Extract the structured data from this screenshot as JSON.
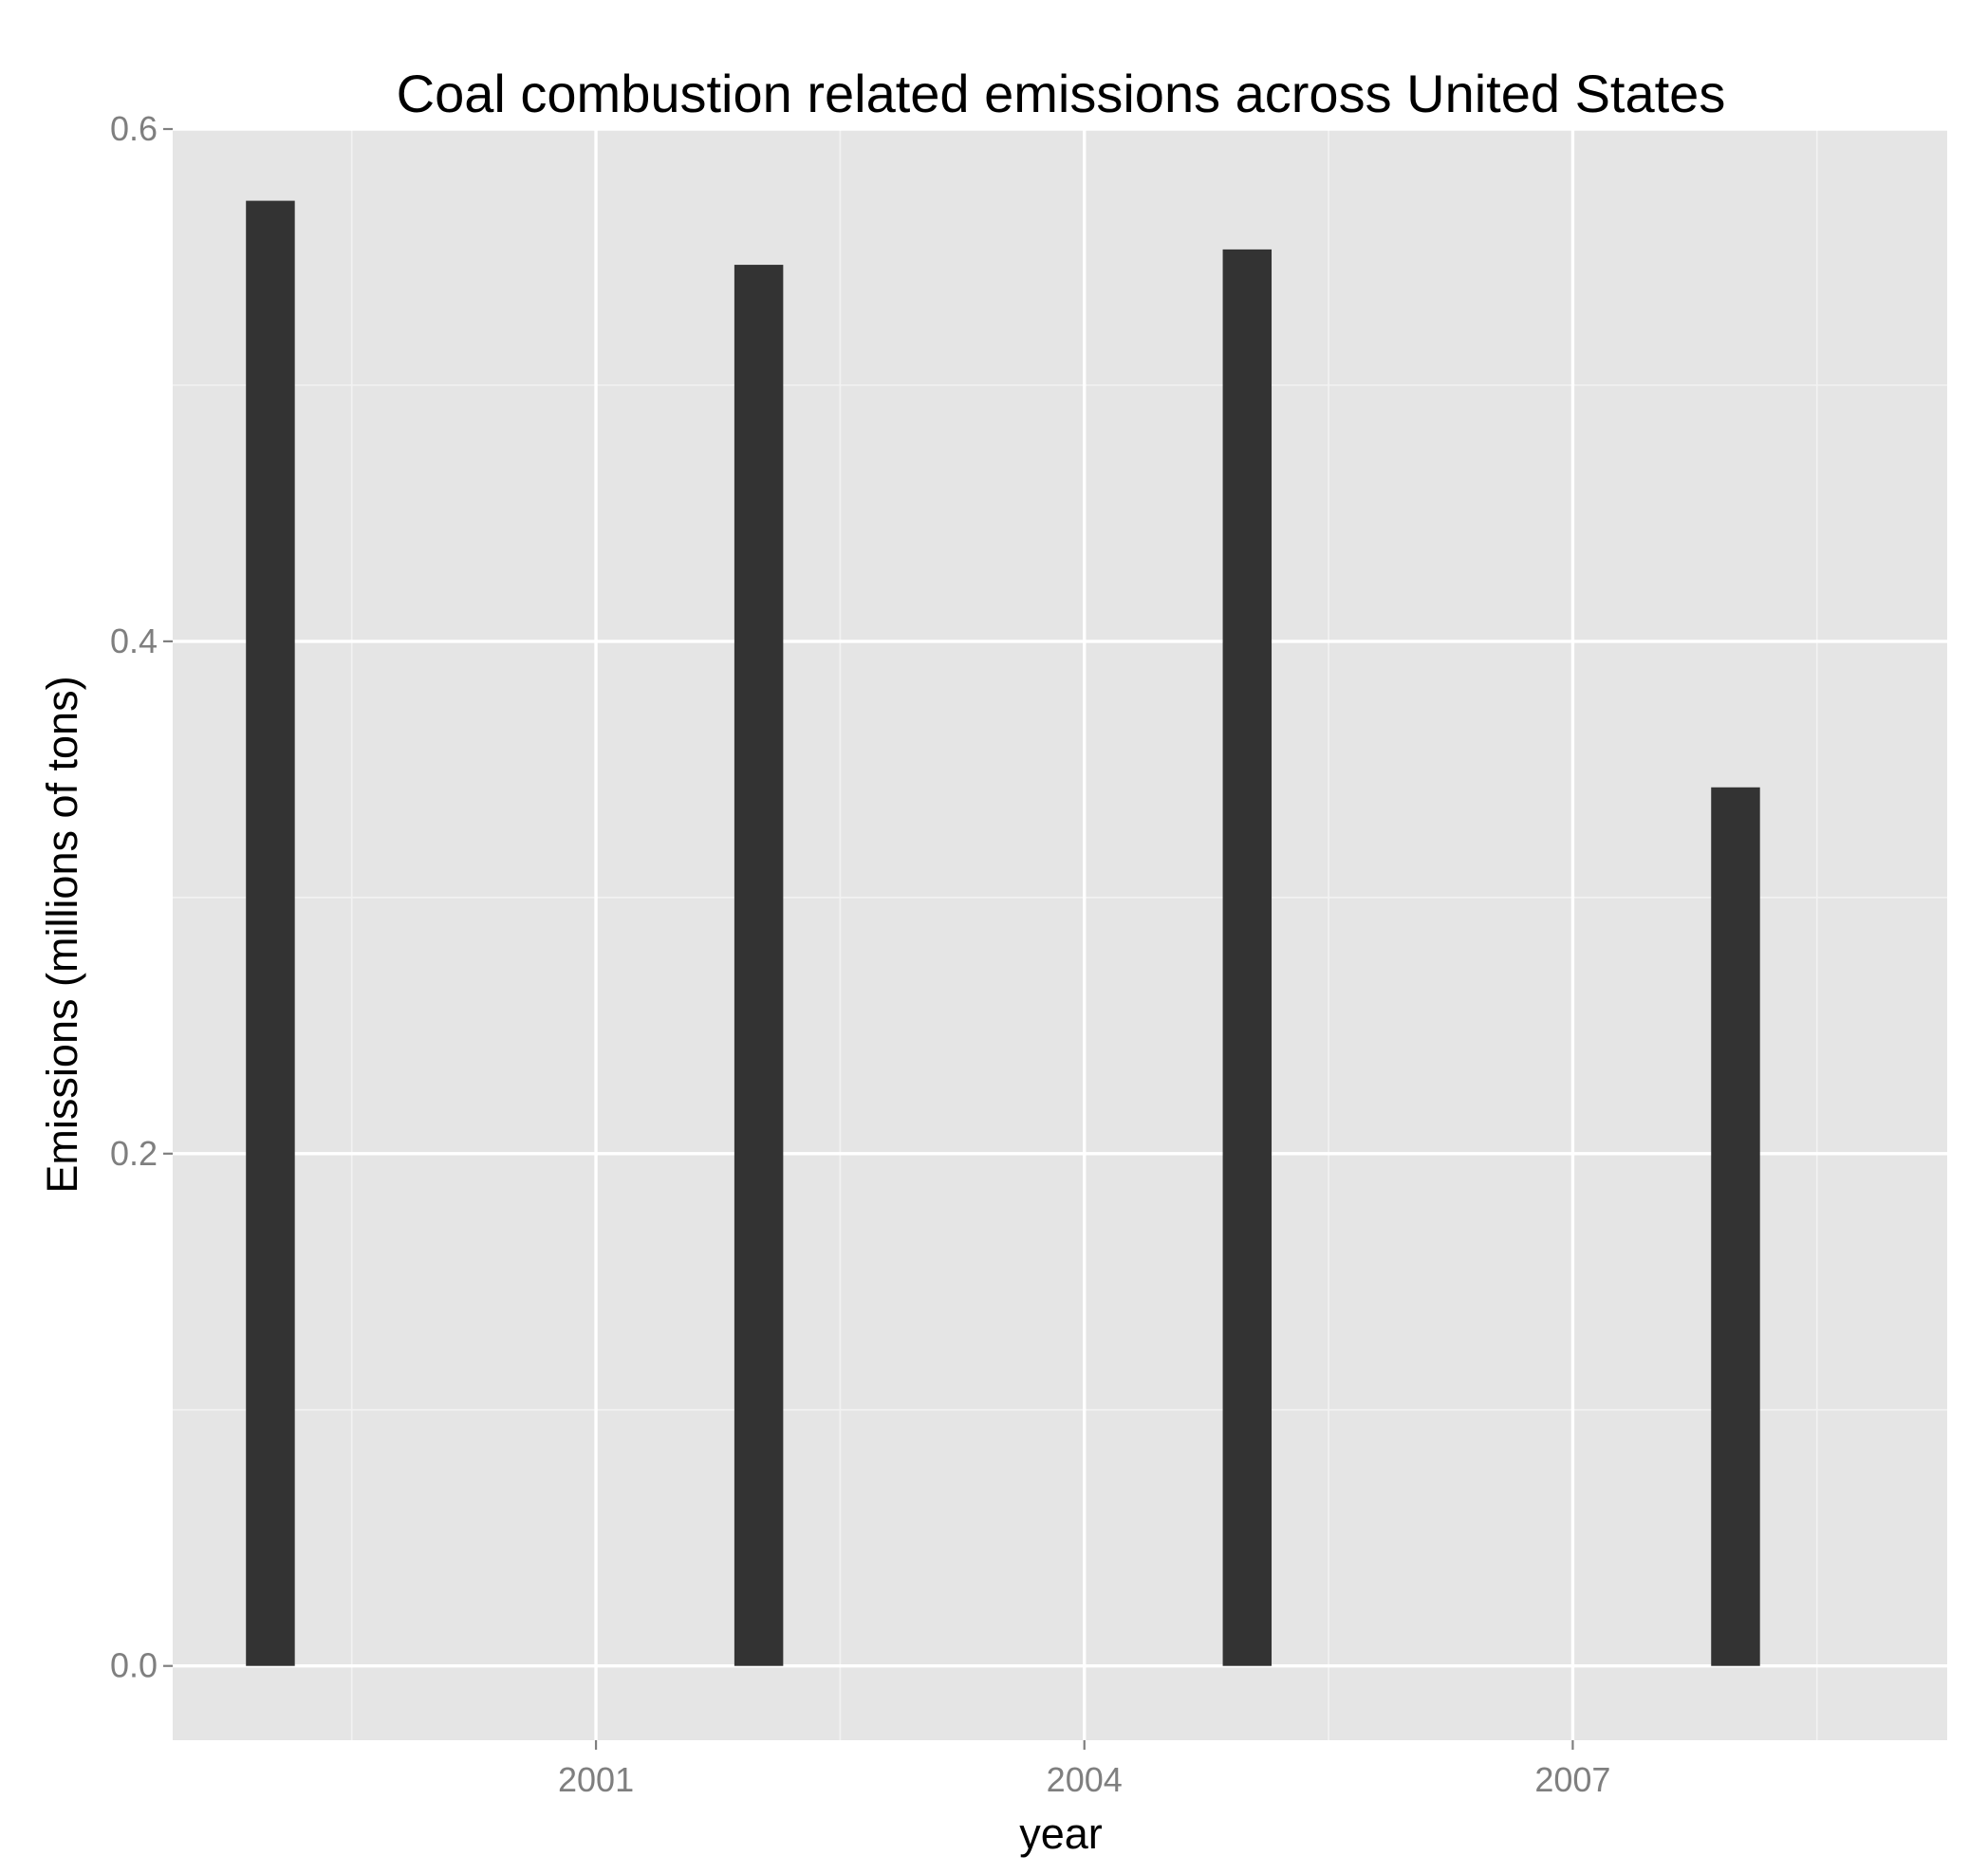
{
  "chart_data": {
    "type": "bar",
    "title": "Coal combustion related emissions across United States",
    "xlabel": "year",
    "ylabel": "Emissions (millions of tons)",
    "x": [
      1999,
      2002,
      2005,
      2008
    ],
    "values": [
      0.572,
      0.547,
      0.553,
      0.343
    ],
    "bar_color": "#333333",
    "panel_background": "#e5e5e5",
    "grid": true,
    "xlim": [
      1998.4,
      2009.3
    ],
    "ylim": [
      -0.029,
      0.6
    ],
    "x_ticks": [
      2001,
      2004,
      2007
    ],
    "x_tick_labels": [
      "2001",
      "2004",
      "2007"
    ],
    "y_ticks": [
      0.0,
      0.2,
      0.4,
      0.6
    ],
    "y_tick_labels": [
      "0.0",
      "0.2",
      "0.4",
      "0.6"
    ],
    "legend": "none"
  }
}
